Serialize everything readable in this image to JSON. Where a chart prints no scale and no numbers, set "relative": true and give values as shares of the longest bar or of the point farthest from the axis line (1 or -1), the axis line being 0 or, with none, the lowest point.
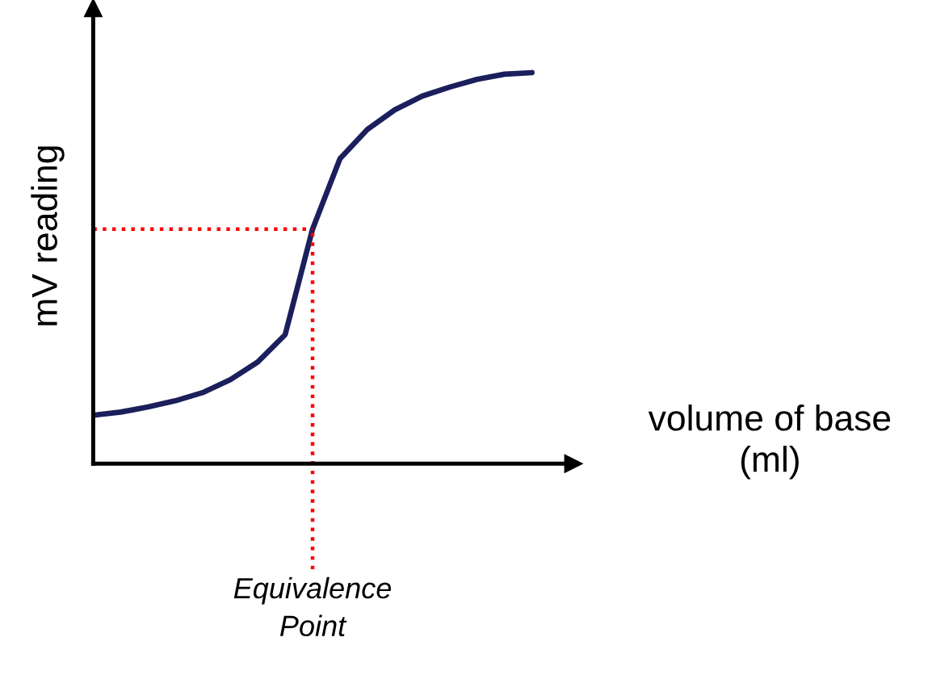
{
  "chart_data": {
    "type": "line",
    "relative": true,
    "ylabel": "mV reading",
    "xlabel": "volume of base\n(ml)",
    "categories": [
      null,
      null,
      null,
      null,
      null,
      null,
      null,
      null,
      null,
      null,
      null,
      null,
      null,
      null,
      null,
      null,
      null
    ],
    "series": [
      {
        "color": "#1b1f5c",
        "values": [
          0.124,
          0.132,
          0.145,
          0.161,
          0.182,
          0.215,
          0.26,
          0.33,
          0.6,
          0.78,
          0.855,
          0.905,
          0.94,
          0.963,
          0.983,
          0.996,
          1.0
        ]
      }
    ],
    "ref_lines": [
      {
        "axis": "y",
        "value": 0.6,
        "color": "#ff0000",
        "line_style": "dotted"
      }
    ],
    "annotations": [
      "Equivalence\nPoint"
    ],
    "grid": false,
    "legend": false,
    "marker": "none",
    "line_style": "solid"
  }
}
